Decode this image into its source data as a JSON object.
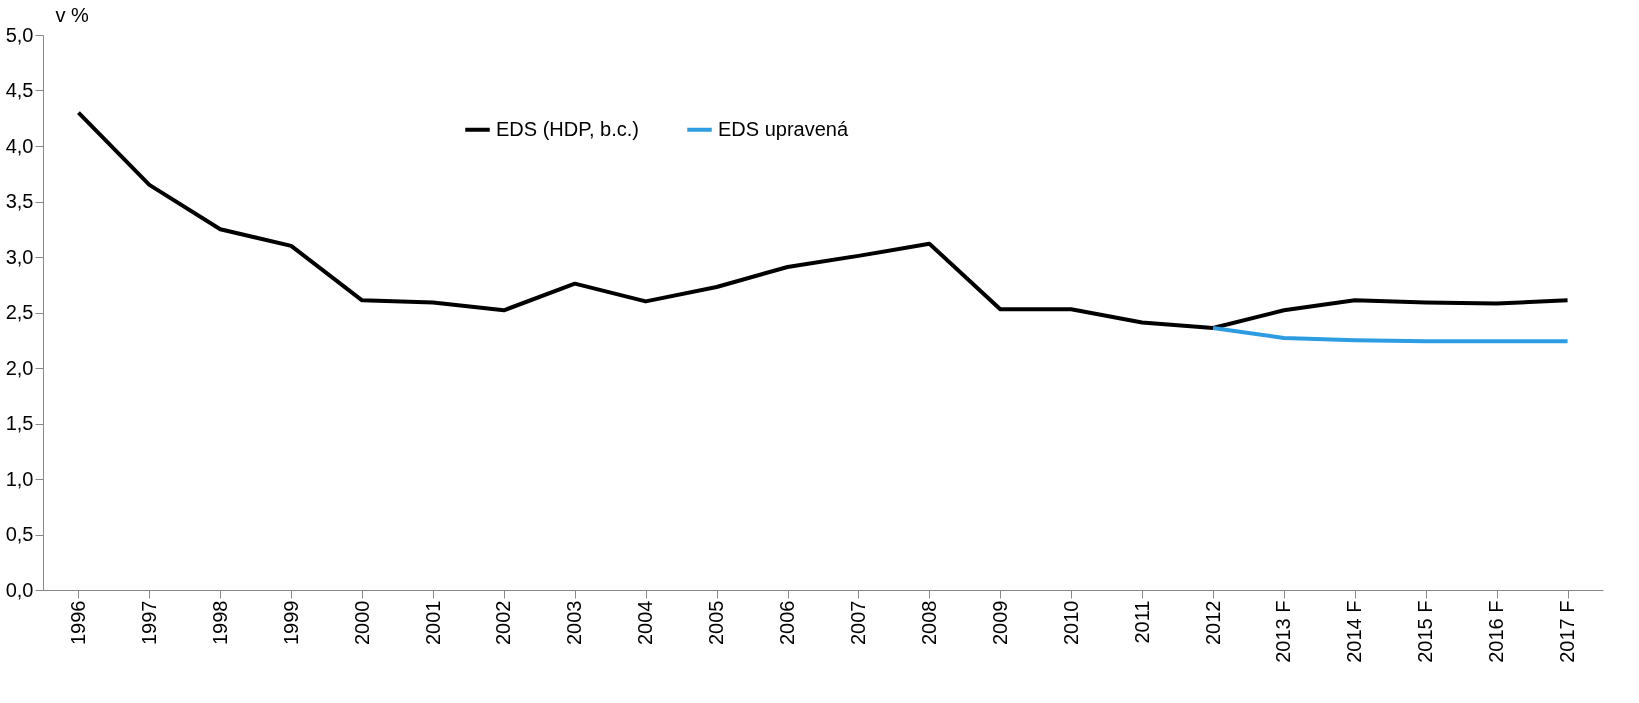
{
  "chart_data": {
    "type": "line",
    "ylabel": "v %",
    "categories": [
      "1996",
      "1997",
      "1998",
      "1999",
      "2000",
      "2001",
      "2002",
      "2003",
      "2004",
      "2005",
      "2006",
      "2007",
      "2008",
      "2009",
      "2010",
      "2011",
      "2012",
      "2013 F",
      "2014 F",
      "2015 F",
      "2016 F",
      "2017 F"
    ],
    "series": [
      {
        "name": "EDS (HDP, b.c.)",
        "color": "#000000",
        "values": [
          4.3,
          3.65,
          3.25,
          3.1,
          2.61,
          2.59,
          2.52,
          2.76,
          2.6,
          2.73,
          2.91,
          3.01,
          3.12,
          2.53,
          2.53,
          2.41,
          2.36,
          2.52,
          2.61,
          2.59,
          2.58,
          2.61
        ]
      },
      {
        "name": "EDS upravená",
        "color": "#2e9ce0",
        "values": [
          null,
          null,
          null,
          null,
          null,
          null,
          null,
          null,
          null,
          null,
          null,
          null,
          null,
          null,
          null,
          null,
          2.36,
          2.27,
          2.25,
          2.24,
          2.24,
          2.24
        ]
      }
    ],
    "ylim": [
      0,
      5
    ],
    "yticks": [
      {
        "value": 0,
        "label": "0,0"
      },
      {
        "value": 0.5,
        "label": "0,5"
      },
      {
        "value": 1,
        "label": "1,0"
      },
      {
        "value": 1.5,
        "label": "1,5"
      },
      {
        "value": 2,
        "label": "2,0"
      },
      {
        "value": 2.5,
        "label": "2,5"
      },
      {
        "value": 3,
        "label": "3,0"
      },
      {
        "value": 3.5,
        "label": "3,5"
      },
      {
        "value": 4,
        "label": "4,0"
      },
      {
        "value": 4.5,
        "label": "4,5"
      },
      {
        "value": 5,
        "label": "5,0"
      }
    ],
    "grid": false,
    "legend": "top",
    "marker": "none",
    "line_style": "solid"
  }
}
